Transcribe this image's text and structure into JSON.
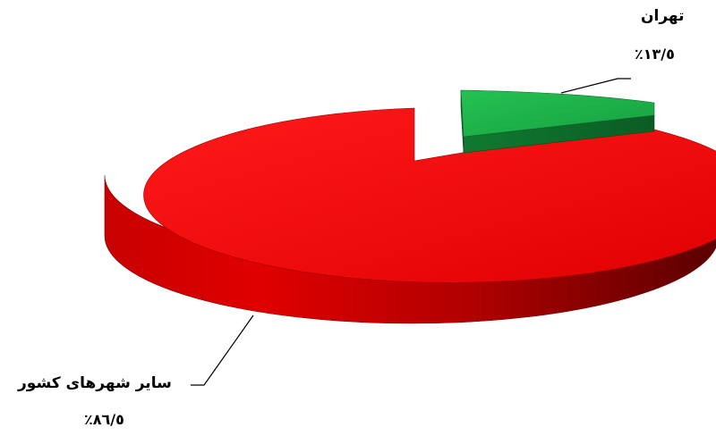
{
  "chart_data": {
    "type": "pie",
    "style": "3d-exploded",
    "slices": [
      {
        "label": "تهران",
        "value": 13.5,
        "value_text": "١٣/٥٪",
        "color": "#1eb04a"
      },
      {
        "label": "ساير شهرهای كشور",
        "value": 86.5,
        "value_text": "٨٦/٥٪",
        "color": "#e60000"
      }
    ]
  }
}
